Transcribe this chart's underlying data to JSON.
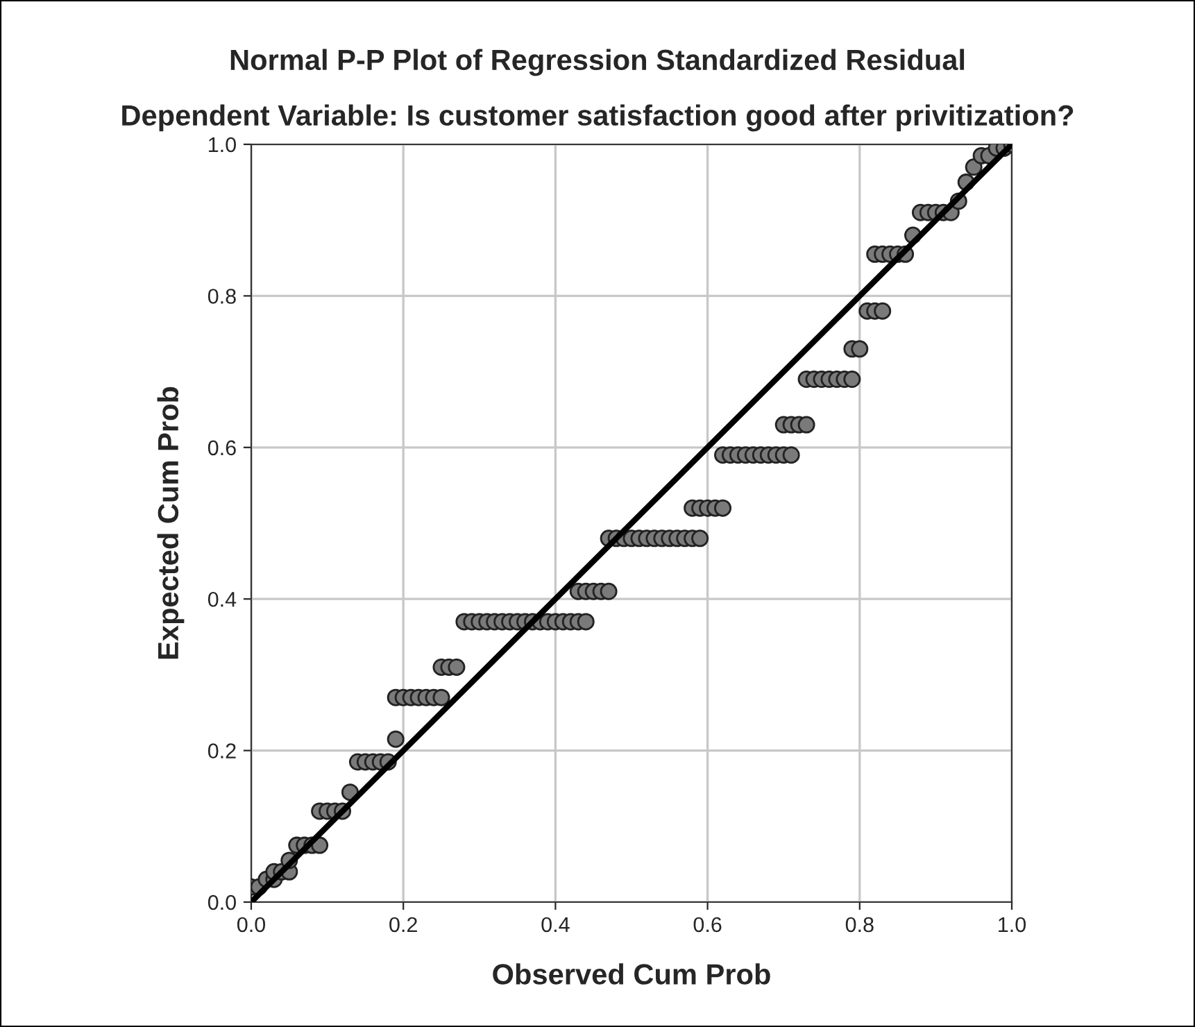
{
  "chart_data": {
    "type": "scatter",
    "title": "Normal P-P Plot of Regression Standardized Residual",
    "subtitle": "Dependent Variable: Is customer satisfaction good after privitization?",
    "xlabel": "Observed Cum Prob",
    "ylabel": "Expected Cum Prob",
    "xlim": [
      0,
      1
    ],
    "ylim": [
      0,
      1
    ],
    "xticks": [
      {
        "value": 0,
        "label": "0.0"
      },
      0.2,
      0.4,
      0.6,
      0.8,
      {
        "value": 1,
        "label": "1.0"
      }
    ],
    "yticks": [
      {
        "value": 0,
        "label": "0.0"
      },
      0.2,
      0.4,
      0.6,
      0.8,
      {
        "value": 1,
        "label": "1.0"
      }
    ],
    "grid": true,
    "series": [
      {
        "marker": "circle",
        "color": "#7a7a7a",
        "x": [
          0.0,
          0.01,
          0.02,
          0.03,
          0.03,
          0.04,
          0.05,
          0.05,
          0.06,
          0.07,
          0.08,
          0.09,
          0.09,
          0.1,
          0.11,
          0.12,
          0.13,
          0.14,
          0.15,
          0.16,
          0.17,
          0.18,
          0.19,
          0.19,
          0.2,
          0.21,
          0.22,
          0.23,
          0.24,
          0.25,
          0.25,
          0.26,
          0.27,
          0.28,
          0.29,
          0.3,
          0.31,
          0.32,
          0.33,
          0.34,
          0.35,
          0.36,
          0.37,
          0.38,
          0.39,
          0.4,
          0.41,
          0.42,
          0.43,
          0.44,
          0.43,
          0.44,
          0.45,
          0.46,
          0.47,
          0.47,
          0.48,
          0.49,
          0.5,
          0.51,
          0.52,
          0.53,
          0.54,
          0.55,
          0.56,
          0.57,
          0.58,
          0.59,
          0.58,
          0.59,
          0.6,
          0.61,
          0.62,
          0.62,
          0.63,
          0.64,
          0.65,
          0.66,
          0.67,
          0.68,
          0.69,
          0.7,
          0.71,
          0.7,
          0.71,
          0.72,
          0.73,
          0.73,
          0.74,
          0.75,
          0.76,
          0.77,
          0.78,
          0.79,
          0.79,
          0.8,
          0.81,
          0.82,
          0.83,
          0.82,
          0.83,
          0.84,
          0.85,
          0.86,
          0.87,
          0.88,
          0.89,
          0.9,
          0.91,
          0.92,
          0.93,
          0.94,
          0.95,
          0.96,
          0.97,
          0.98,
          0.99,
          1.0
        ],
        "values": [
          0.02,
          0.02,
          0.03,
          0.03,
          0.04,
          0.04,
          0.04,
          0.055,
          0.075,
          0.075,
          0.075,
          0.075,
          0.12,
          0.12,
          0.12,
          0.12,
          0.145,
          0.185,
          0.185,
          0.185,
          0.185,
          0.185,
          0.215,
          0.27,
          0.27,
          0.27,
          0.27,
          0.27,
          0.27,
          0.27,
          0.31,
          0.31,
          0.31,
          0.37,
          0.37,
          0.37,
          0.37,
          0.37,
          0.37,
          0.37,
          0.37,
          0.37,
          0.37,
          0.37,
          0.37,
          0.37,
          0.37,
          0.37,
          0.37,
          0.37,
          0.41,
          0.41,
          0.41,
          0.41,
          0.41,
          0.48,
          0.48,
          0.48,
          0.48,
          0.48,
          0.48,
          0.48,
          0.48,
          0.48,
          0.48,
          0.48,
          0.48,
          0.48,
          0.52,
          0.52,
          0.52,
          0.52,
          0.52,
          0.59,
          0.59,
          0.59,
          0.59,
          0.59,
          0.59,
          0.59,
          0.59,
          0.59,
          0.59,
          0.63,
          0.63,
          0.63,
          0.63,
          0.69,
          0.69,
          0.69,
          0.69,
          0.69,
          0.69,
          0.69,
          0.73,
          0.73,
          0.78,
          0.78,
          0.78,
          0.855,
          0.855,
          0.855,
          0.855,
          0.855,
          0.88,
          0.91,
          0.91,
          0.91,
          0.91,
          0.91,
          0.925,
          0.95,
          0.97,
          0.985,
          0.985,
          0.995,
          0.995,
          1.0
        ]
      },
      {
        "type": "line",
        "marker": "none",
        "color": "#000000",
        "x": [
          0,
          1
        ],
        "values": [
          0,
          1
        ]
      }
    ]
  }
}
